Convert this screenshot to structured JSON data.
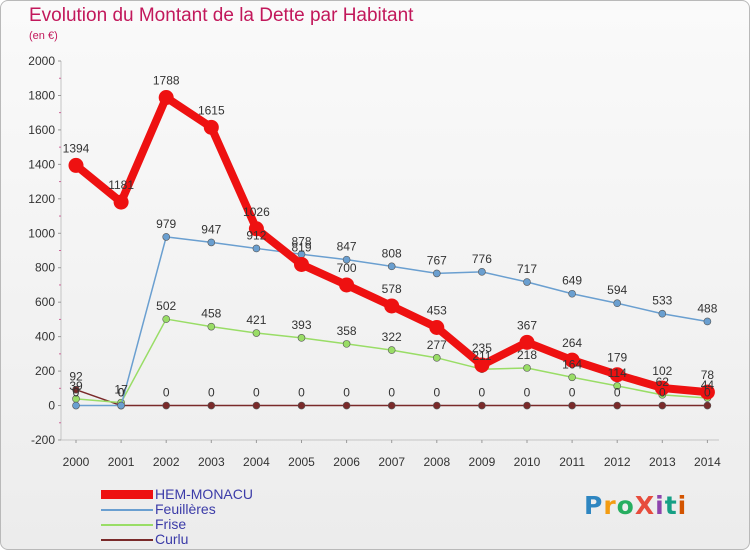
{
  "title": "Evolution du Montant de la Dette par Habitant",
  "subtitle": "(en €)",
  "logo": {
    "text": "ProXiti",
    "letter_colors": [
      "#2e86c1",
      "#f39c12",
      "#27ae60",
      "#e74c3c",
      "#8e44ad",
      "#16a085",
      "#d35400"
    ]
  },
  "chart_data": {
    "type": "line",
    "title": "Evolution du Montant de la Dette par Habitant",
    "ylabel": "(en €)",
    "xlabel": "",
    "x": [
      "2000",
      "2001",
      "2002",
      "2003",
      "2004",
      "2005",
      "2006",
      "2007",
      "2008",
      "2009",
      "2010",
      "2011",
      "2012",
      "2013",
      "2014"
    ],
    "ylim": [
      -200,
      2000
    ],
    "yticks": [
      "-200",
      "0",
      "200",
      "400",
      "600",
      "800",
      "1000",
      "1200",
      "1400",
      "1600",
      "1800",
      "2000"
    ],
    "grid": false,
    "legend_position": "bottom-left",
    "series": [
      {
        "name": "HEM-MONACU",
        "color": "#ee1111",
        "values": [
          1394,
          1181,
          1788,
          1615,
          1026,
          819,
          700,
          578,
          453,
          235,
          367,
          264,
          179,
          102,
          78
        ],
        "labels": [
          "1394",
          "1181",
          "1788",
          "1615",
          "1026",
          "819",
          "700",
          "578",
          "453",
          "235",
          "367",
          "264",
          "179",
          "102",
          "78"
        ]
      },
      {
        "name": "Feuillères",
        "color": "#6a9fd0",
        "values": [
          0,
          0,
          979,
          947,
          912,
          878,
          847,
          808,
          767,
          776,
          717,
          649,
          594,
          533,
          488
        ],
        "labels": [
          "0",
          "0",
          "979",
          "947",
          "912",
          "878",
          "847",
          "808",
          "767",
          "776",
          "717",
          "649",
          "594",
          "533",
          "488"
        ]
      },
      {
        "name": "Frise",
        "color": "#99dd66",
        "values": [
          39,
          17,
          502,
          458,
          421,
          393,
          358,
          322,
          277,
          211,
          218,
          164,
          114,
          62,
          44
        ],
        "labels": [
          "39",
          "17",
          "502",
          "458",
          "421",
          "393",
          "358",
          "322",
          "277",
          "211",
          "218",
          "164",
          "114",
          "62",
          "44"
        ]
      },
      {
        "name": "Curlu",
        "color": "#7a2a2a",
        "values": [
          92,
          0,
          0,
          0,
          0,
          0,
          0,
          0,
          0,
          0,
          0,
          0,
          0,
          0,
          0
        ],
        "labels": [
          "92",
          "0",
          "0",
          "0",
          "0",
          "0",
          "0",
          "0",
          "0",
          "0",
          "0",
          "0",
          "0",
          "0",
          "0"
        ]
      }
    ]
  }
}
